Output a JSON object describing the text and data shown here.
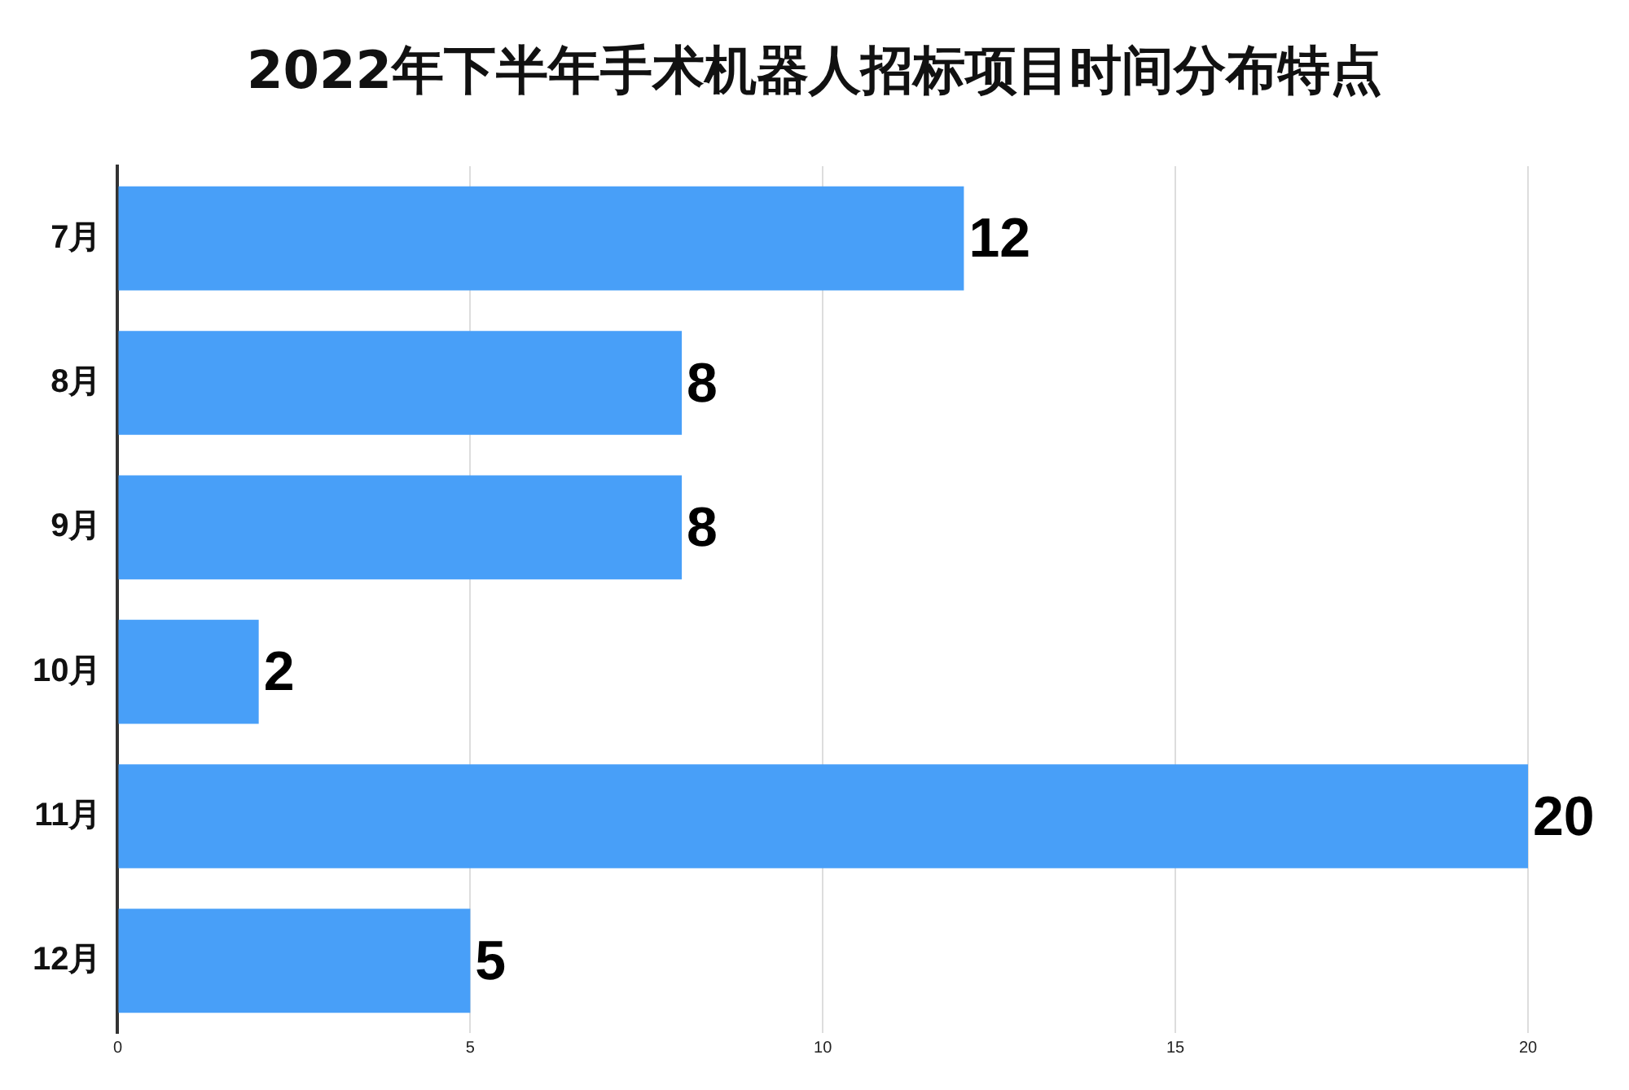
{
  "chart_data": {
    "type": "bar",
    "orientation": "horizontal",
    "title": "2022年下半年手术机器人招标项目时间分布特点",
    "categories": [
      "7月",
      "8月",
      "9月",
      "10月",
      "11月",
      "12月"
    ],
    "values": [
      12,
      8,
      8,
      2,
      20,
      5
    ],
    "color": "#489ff8",
    "xlim": [
      0,
      20
    ],
    "xticks": [
      0,
      5,
      10,
      15,
      20
    ],
    "grid": "x",
    "data_labels": true,
    "legend": false
  }
}
